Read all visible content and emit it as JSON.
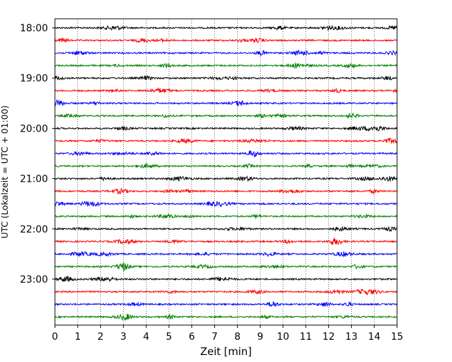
{
  "chart_data": {
    "type": "line",
    "title": "",
    "xlabel": "Zeit  [min]",
    "ylabel": "UTC (Lokalzeit = UTC + 01:00)",
    "xlim": [
      0,
      15
    ],
    "x_ticks": [
      "0",
      "1",
      "2",
      "3",
      "4",
      "5",
      "6",
      "7",
      "8",
      "9",
      "10",
      "11",
      "12",
      "13",
      "14",
      "15"
    ],
    "y_ticks": [
      "18:00",
      "19:00",
      "20:00",
      "21:00",
      "22:00",
      "23:00"
    ],
    "y_tick_rows": [
      0,
      4,
      8,
      12,
      16,
      20
    ],
    "grid": "vertical dotted",
    "trace_count": 24,
    "trace_minutes": 15,
    "trace_start": "18:00",
    "trace_end": "23:45",
    "trace_colors": [
      "#000000",
      "#ff0000",
      "#0000ff",
      "#008000"
    ]
  }
}
